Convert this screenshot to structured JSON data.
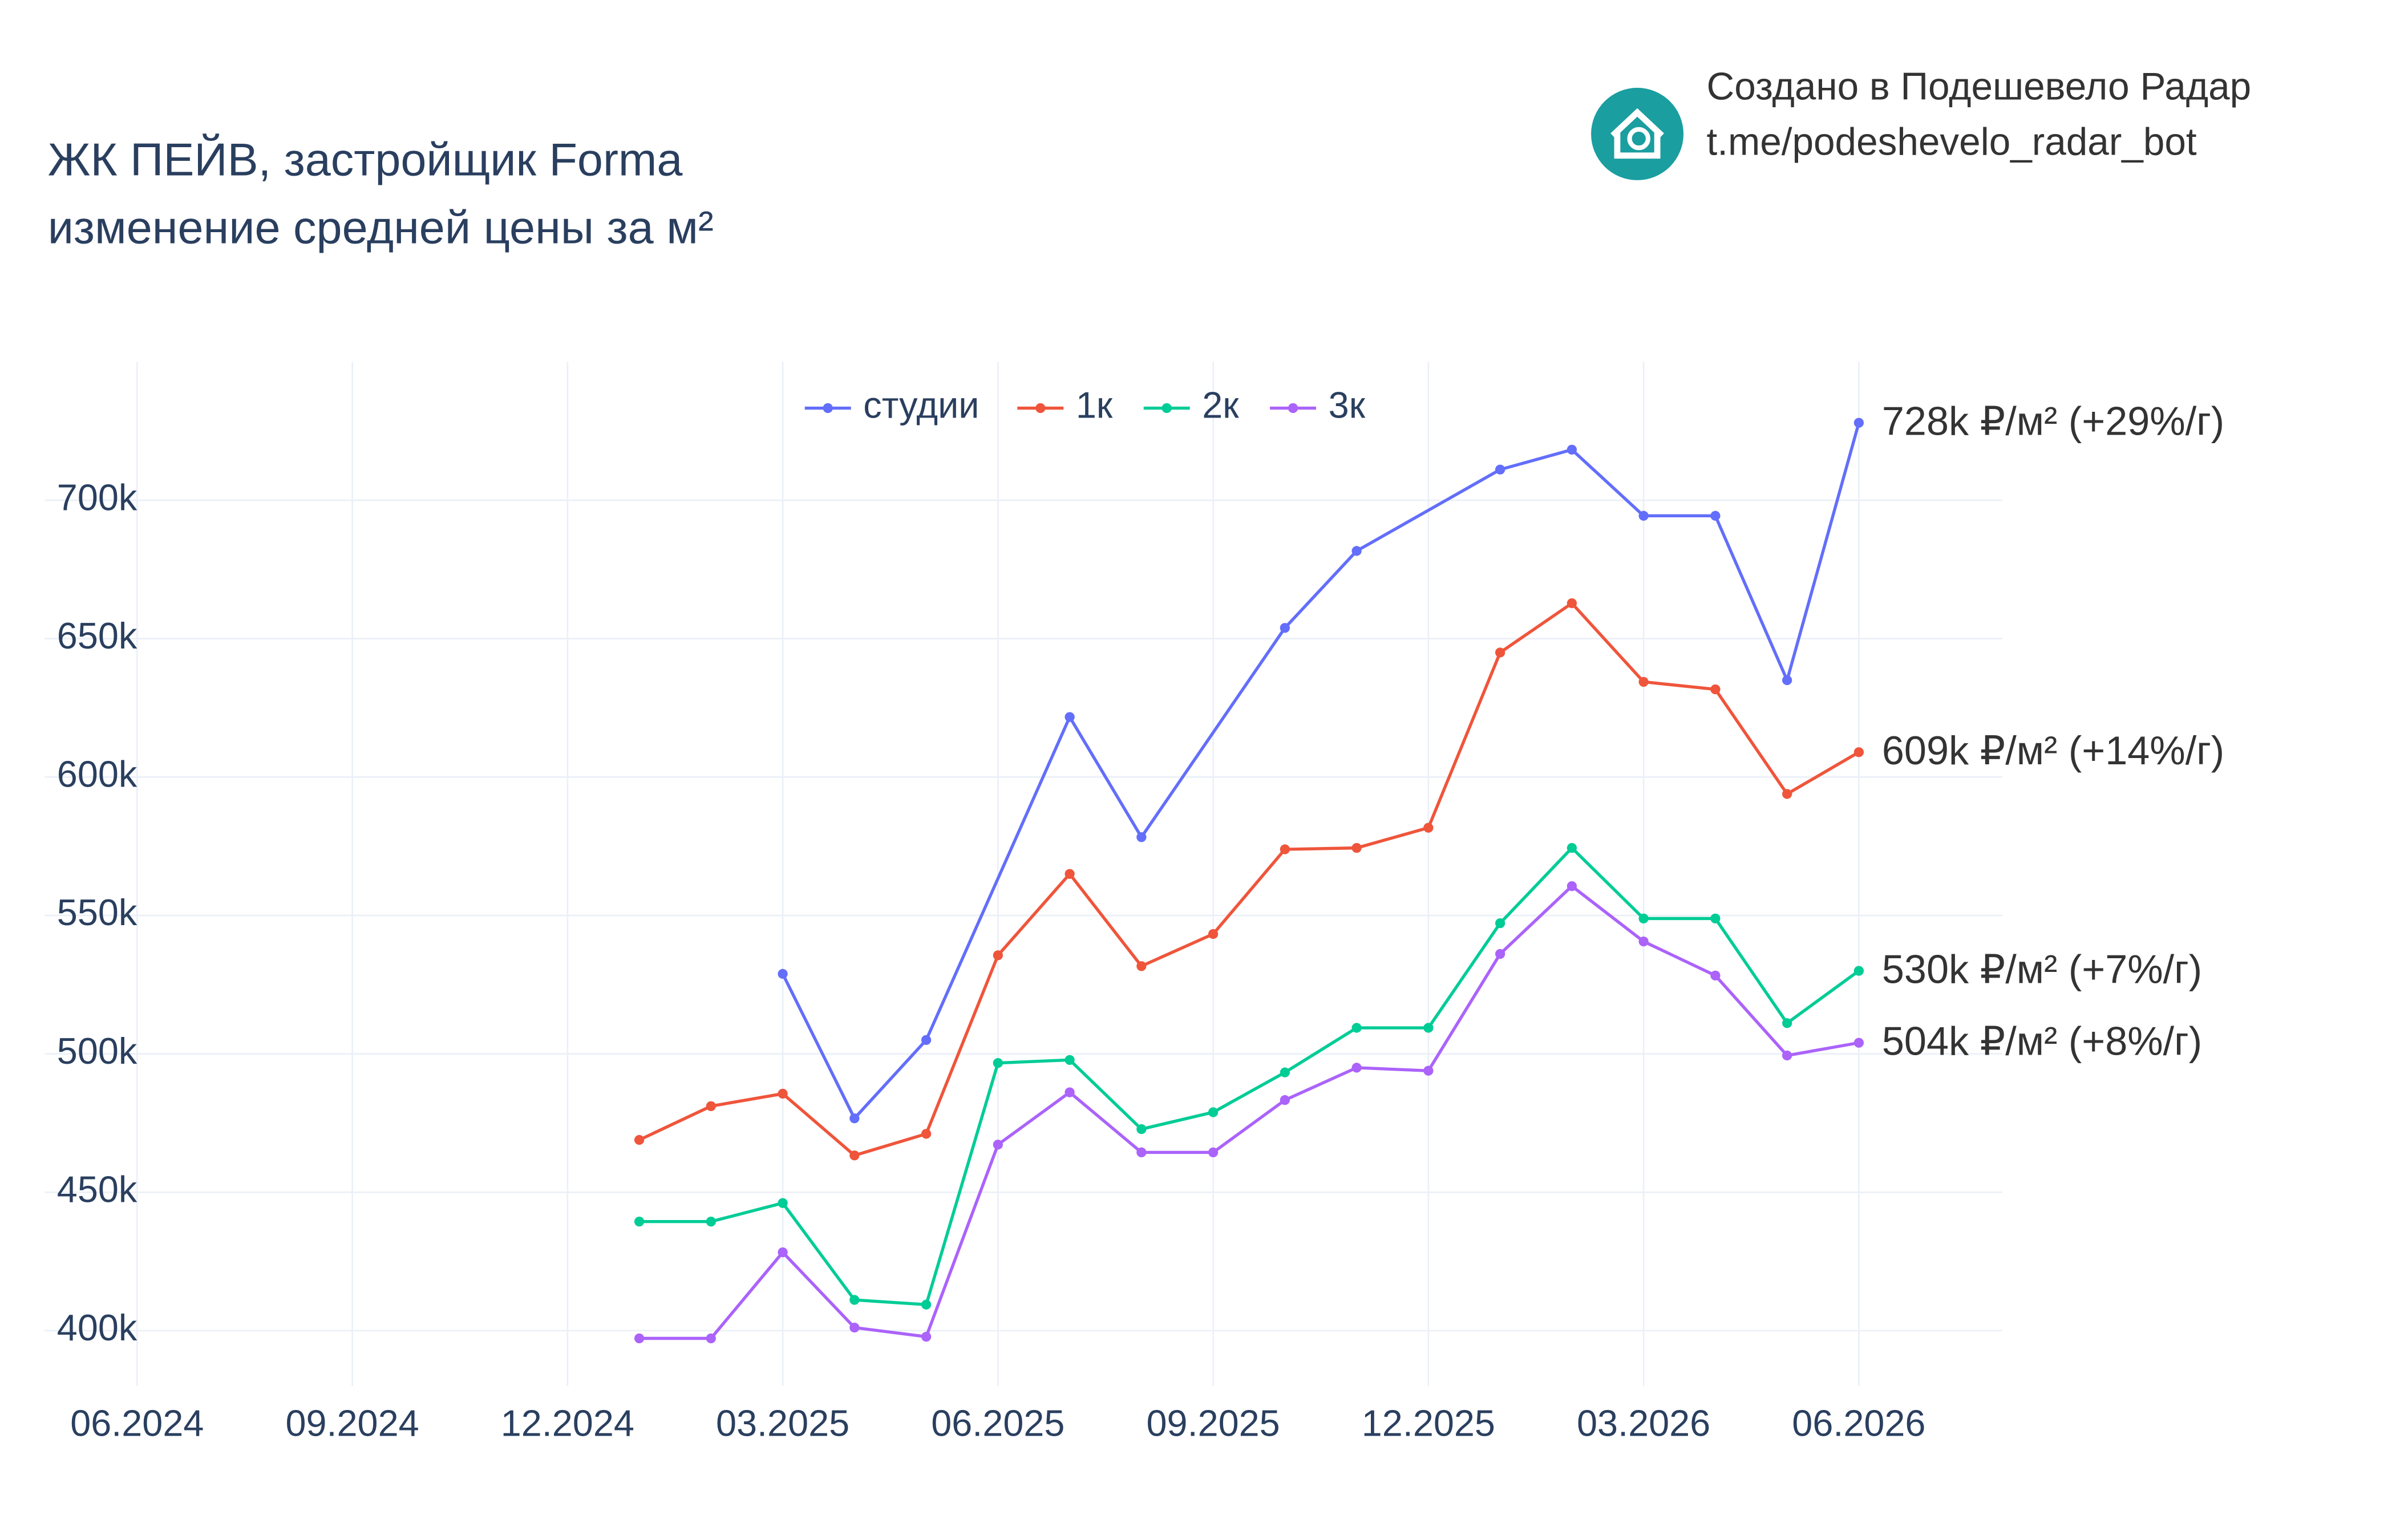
{
  "header": {
    "title_lines": [
      "ЖК ПЕЙВ, застройщик Forma",
      "изменение средней цены за м²"
    ],
    "brand": "Создано в Подешевело Радар",
    "link": "t.me/podeshevelo_radar_bot"
  },
  "chart_data": {
    "type": "line",
    "xlim": [
      "06.2024",
      "08.2026"
    ],
    "xticks": [
      "06.2024",
      "09.2024",
      "12.2024",
      "03.2025",
      "06.2025",
      "09.2025",
      "12.2025",
      "03.2026",
      "06.2026"
    ],
    "ylim": [
      380000,
      750000
    ],
    "yticks": [
      {
        "value": 400000,
        "label": "400k"
      },
      {
        "value": 450000,
        "label": "450k"
      },
      {
        "value": 500000,
        "label": "500k"
      },
      {
        "value": 550000,
        "label": "550k"
      },
      {
        "value": 600000,
        "label": "600k"
      },
      {
        "value": 650000,
        "label": "650k"
      },
      {
        "value": 700000,
        "label": "700k"
      }
    ],
    "grid": true,
    "legend_position": "top",
    "series": [
      {
        "name": "студии",
        "color": "#636efa",
        "end_label": "728k ₽/м² (+29%/г)",
        "x": [
          "03.2025",
          "04.2025",
          "05.2025",
          "07.2025",
          "08.2025",
          "10.2025",
          "11.2025",
          "01.2026",
          "02.2026",
          "03.2026",
          "04.2026",
          "05.2026",
          "06.2026"
        ],
        "values": [
          528900,
          476700,
          505000,
          621700,
          578300,
          653900,
          681700,
          711100,
          718300,
          694400,
          694400,
          635000,
          728000
        ]
      },
      {
        "name": "1к",
        "color": "#ef553b",
        "end_label": "609k ₽/м² (+14%/г)",
        "x": [
          "01.2025",
          "02.2025",
          "03.2025",
          "04.2025",
          "05.2025",
          "06.2025",
          "07.2025",
          "08.2025",
          "09.2025",
          "10.2025",
          "11.2025",
          "12.2025",
          "01.2026",
          "02.2026",
          "03.2026",
          "04.2026",
          "05.2026",
          "06.2026"
        ],
        "values": [
          468900,
          481100,
          485600,
          463300,
          471100,
          535600,
          565000,
          531700,
          543300,
          573900,
          574400,
          581700,
          645000,
          662800,
          634400,
          631700,
          593900,
          609000
        ]
      },
      {
        "name": "2к",
        "color": "#00cc96",
        "end_label": "530k ₽/м² (+7%/г)",
        "x": [
          "01.2025",
          "02.2025",
          "03.2025",
          "04.2025",
          "05.2025",
          "06.2025",
          "07.2025",
          "08.2025",
          "09.2025",
          "10.2025",
          "11.2025",
          "12.2025",
          "01.2026",
          "02.2026",
          "03.2026",
          "04.2026",
          "05.2026",
          "06.2026"
        ],
        "values": [
          439400,
          439400,
          446100,
          411100,
          409400,
          496700,
          497800,
          472800,
          478900,
          493300,
          509400,
          509400,
          547200,
          574400,
          548900,
          548900,
          511100,
          530000
        ]
      },
      {
        "name": "3к",
        "color": "#ab63fa",
        "end_label": "504k ₽/м² (+8%/г)",
        "x": [
          "01.2025",
          "02.2025",
          "03.2025",
          "04.2025",
          "05.2025",
          "06.2025",
          "07.2025",
          "08.2025",
          "09.2025",
          "10.2025",
          "11.2025",
          "12.2025",
          "01.2026",
          "02.2026",
          "03.2026",
          "04.2026",
          "05.2026",
          "06.2026"
        ],
        "values": [
          397200,
          397200,
          428300,
          401100,
          397800,
          467200,
          486100,
          464400,
          464400,
          483300,
          495000,
          493900,
          536100,
          560600,
          540600,
          528300,
          499400,
          504000
        ]
      }
    ]
  }
}
